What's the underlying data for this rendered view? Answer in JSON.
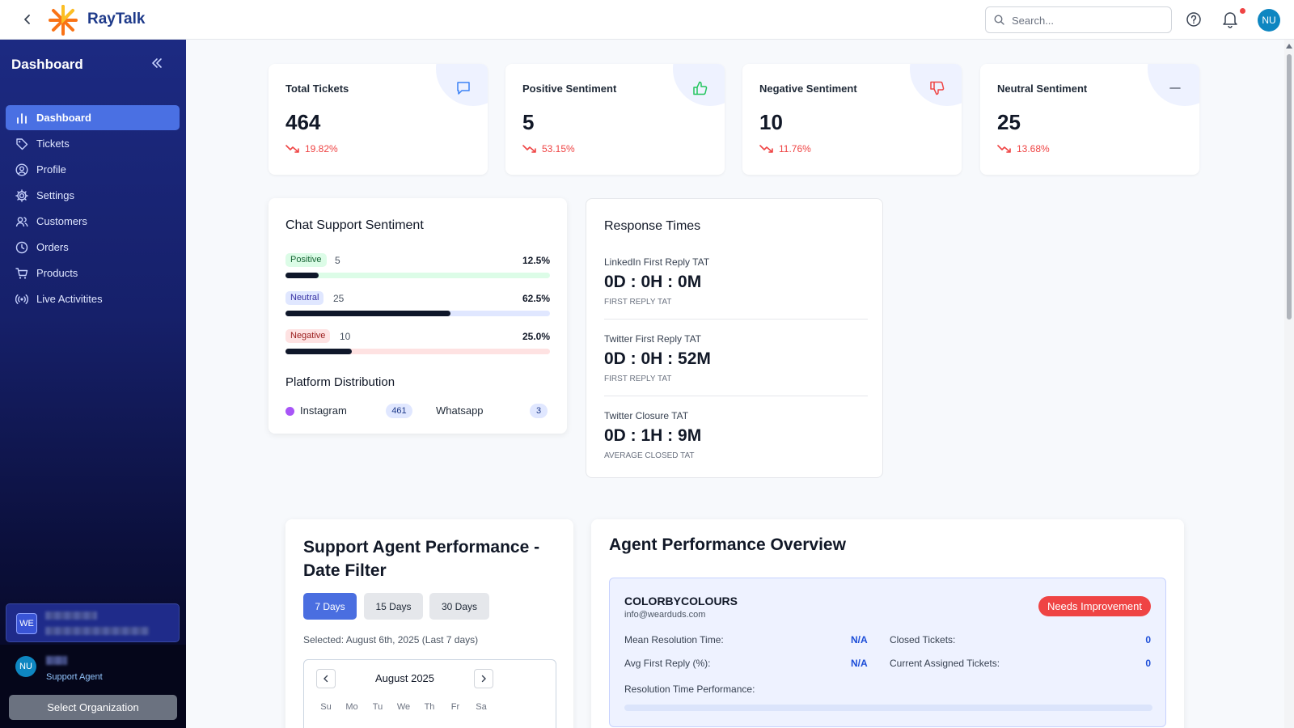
{
  "app": {
    "name": "RayTalk",
    "back_icon": "chevron-left-icon",
    "logo_colors": [
      "#f97316",
      "#fbbf24"
    ]
  },
  "topbar": {
    "search_placeholder": "Search...",
    "help_icon": "help-circle-icon",
    "bell_icon": "bell-icon",
    "avatar_initials": "NU"
  },
  "sidebar": {
    "title": "Dashboard",
    "collapse_icon": "double-chevron-left-icon",
    "items": [
      {
        "label": "Dashboard",
        "icon": "bar-chart-icon",
        "active": true
      },
      {
        "label": "Tickets",
        "icon": "tag-icon"
      },
      {
        "label": "Profile",
        "icon": "user-circle-icon"
      },
      {
        "label": "Settings",
        "icon": "gear-icon"
      },
      {
        "label": "Customers",
        "icon": "users-icon"
      },
      {
        "label": "Orders",
        "icon": "clock-icon"
      },
      {
        "label": "Products",
        "icon": "cart-icon"
      },
      {
        "label": "Live Activitites",
        "icon": "broadcast-icon"
      }
    ],
    "org_badge": "WE",
    "user_initials": "NU",
    "user_role": "Support Agent",
    "select_org_label": "Select Organization"
  },
  "stats": [
    {
      "label": "Total Tickets",
      "value": "464",
      "change": "19.82%",
      "icon": "chat-bubble-icon",
      "icon_color": "#3b82f6"
    },
    {
      "label": "Positive Sentiment",
      "value": "5",
      "change": "53.15%",
      "icon": "thumbs-up-icon",
      "icon_color": "#22c55e"
    },
    {
      "label": "Negative Sentiment",
      "value": "10",
      "change": "11.76%",
      "icon": "thumbs-down-icon",
      "icon_color": "#ef4444"
    },
    {
      "label": "Neutral Sentiment",
      "value": "25",
      "change": "13.68%",
      "icon": "minus-icon",
      "icon_color": "#6b7280"
    }
  ],
  "chat_support": {
    "title": "Chat Support Sentiment",
    "rows": [
      {
        "label": "Positive",
        "count": "5",
        "percent": "12.5%",
        "fraction": 0.125,
        "pill_bg": "#dcfce7",
        "pill_color": "#166534",
        "track": "#dcfce7"
      },
      {
        "label": "Neutral",
        "count": "25",
        "percent": "62.5%",
        "fraction": 0.625,
        "pill_bg": "#e0e7ff",
        "pill_color": "#3730a3",
        "track": "#e0e7ff"
      },
      {
        "label": "Negative",
        "count": "10",
        "percent": "25.0%",
        "fraction": 0.25,
        "pill_bg": "#fee2e2",
        "pill_color": "#991b1b",
        "track": "#fee2e2"
      }
    ],
    "platform_title": "Platform Distribution",
    "platforms": [
      {
        "name": "Instagram",
        "count": "461",
        "color": "#a855f7"
      },
      {
        "name": "Whatsapp",
        "count": "3"
      }
    ]
  },
  "response_times": {
    "title": "Response Times",
    "items": [
      {
        "title": "LinkedIn First Reply TAT",
        "value": "0D : 0H : 0M",
        "sub": "FIRST REPLY TAT"
      },
      {
        "title": "Twitter First Reply TAT",
        "value": "0D : 0H : 52M",
        "sub": "FIRST REPLY TAT"
      },
      {
        "title": "Twitter Closure TAT",
        "value": "0D : 1H : 9M",
        "sub": "AVERAGE CLOSED TAT"
      }
    ]
  },
  "agent_performance": {
    "title": "Support Agent Performance - Date Filter",
    "buttons": [
      {
        "label": "7 Days",
        "active": true
      },
      {
        "label": "15 Days"
      },
      {
        "label": "30 Days"
      }
    ],
    "selected_text": "Selected: August 6th, 2025 (Last 7 days)",
    "calendar": {
      "month": "August 2025",
      "days": [
        "Su",
        "Mo",
        "Tu",
        "We",
        "Th",
        "Fr",
        "Sa"
      ]
    }
  },
  "overview": {
    "title": "Agent Performance Overview",
    "agent": {
      "name": "COLORBYCOLOURS",
      "email": "info@wearduds.com",
      "status": "Needs Improvement",
      "metrics": [
        {
          "label": "Mean Resolution Time:",
          "value": "N/A"
        },
        {
          "label": "Closed Tickets:",
          "value": "0"
        },
        {
          "label": "Avg First Reply (%):",
          "value": "N/A"
        },
        {
          "label": "Current Assigned Tickets:",
          "value": "0"
        }
      ],
      "resolution_label": "Resolution Time Performance:"
    }
  }
}
